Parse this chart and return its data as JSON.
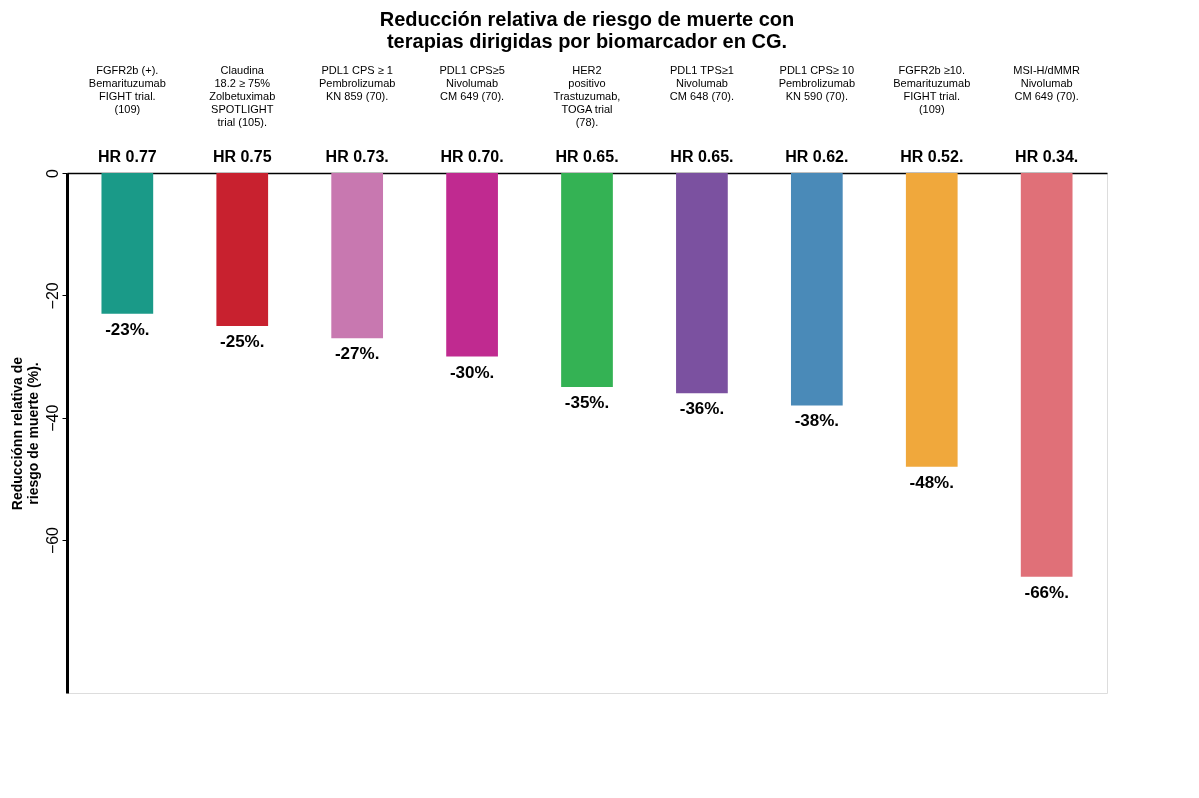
{
  "chart_data": {
    "type": "bar",
    "title": "Reducción relativa de riesgo de muerte con\nterapias dirigidas por biomarcador en CG.",
    "ylabel": "Reducciónn relativa de\nriesgo de muerte (%).",
    "categories": [
      "FGFR2b (+).\nBemarituzumab\nFIGHT trial.\n(109)",
      "Claudina\n18.2 ≥ 75%\nZolbetuximab\nSPOTLIGHT\ntrial (105).",
      "PDL1 CPS ≥ 1\nPembrolizumab\nKN 859 (70).",
      "PDL1 CPS≥5\nNivolumab\nCM  649 (70).",
      "HER2\npositivo\nTrastuzumab,\nTOGA trial\n(78).",
      "PDL1 TPS≥1\nNivolumab\nCM  648 (70).",
      "PDL1 CPS≥ 10\nPembrolizumab\nKN 590 (70).",
      "FGFR2b ≥10.\nBemarituzumab\nFIGHT trial.\n(109)",
      "MSI-H/dMMR\nNivolumab\nCM  649 (70)."
    ],
    "values": [
      -23,
      -25,
      -27,
      -30,
      -35,
      -36,
      -38,
      -48,
      -66
    ],
    "colors": [
      "#1a9a88",
      "#c8212f",
      "#c878b0",
      "#c02a90",
      "#34b254",
      "#7b51a0",
      "#4a8ab8",
      "#f0a83c",
      "#e07078"
    ],
    "value_labels": [
      "-23%.",
      "-25%.",
      "-27%.",
      "-30%.",
      "-35%.",
      "-36%.",
      "-38%.",
      "-48%.",
      "-66%."
    ],
    "annotations": [
      {
        "text": "HR 0.77",
        "x": "FGFR2b (+).\nBemarituzumab\nFIGHT trial.\n(109)",
        "y": 0
      },
      {
        "text": "HR 0.75",
        "x": "Claudina\n18.2 ≥ 75%\nZolbetuximab\nSPOTLIGHT\ntrial (105).",
        "y": 0
      },
      {
        "text": "HR 0.73.",
        "x": "PDL1 CPS ≥ 1\nPembrolizumab\nKN 859 (70).",
        "y": 0
      },
      {
        "text": "HR 0.70.",
        "x": "PDL1 CPS≥5\nNivolumab\nCM  649 (70).",
        "y": 0
      },
      {
        "text": "HR 0.65.",
        "x": "HER2\npositivo\nTrastuzumab,\nTOGA trial\n(78).",
        "y": 0
      },
      {
        "text": "HR 0.65.",
        "x": "PDL1 TPS≥1\nNivolumab\nCM  648 (70).",
        "y": 0
      },
      {
        "text": "HR 0.62.",
        "x": "PDL1 CPS≥ 10\nPembrolizumab\nKN 590 (70).",
        "y": 0
      },
      {
        "text": "HR 0.52.",
        "x": "FGFR2b ≥10.\nBemarituzumab\nFIGHT trial.\n(109)",
        "y": 0
      },
      {
        "text": "HR 0.34.",
        "x": "MSI-H/dMMR\nNivolumab\nCM  649 (70).",
        "y": 0
      }
    ],
    "ylim": [
      -85,
      0
    ],
    "yticks": [
      0,
      -20,
      -40,
      -60
    ],
    "grid": false
  }
}
